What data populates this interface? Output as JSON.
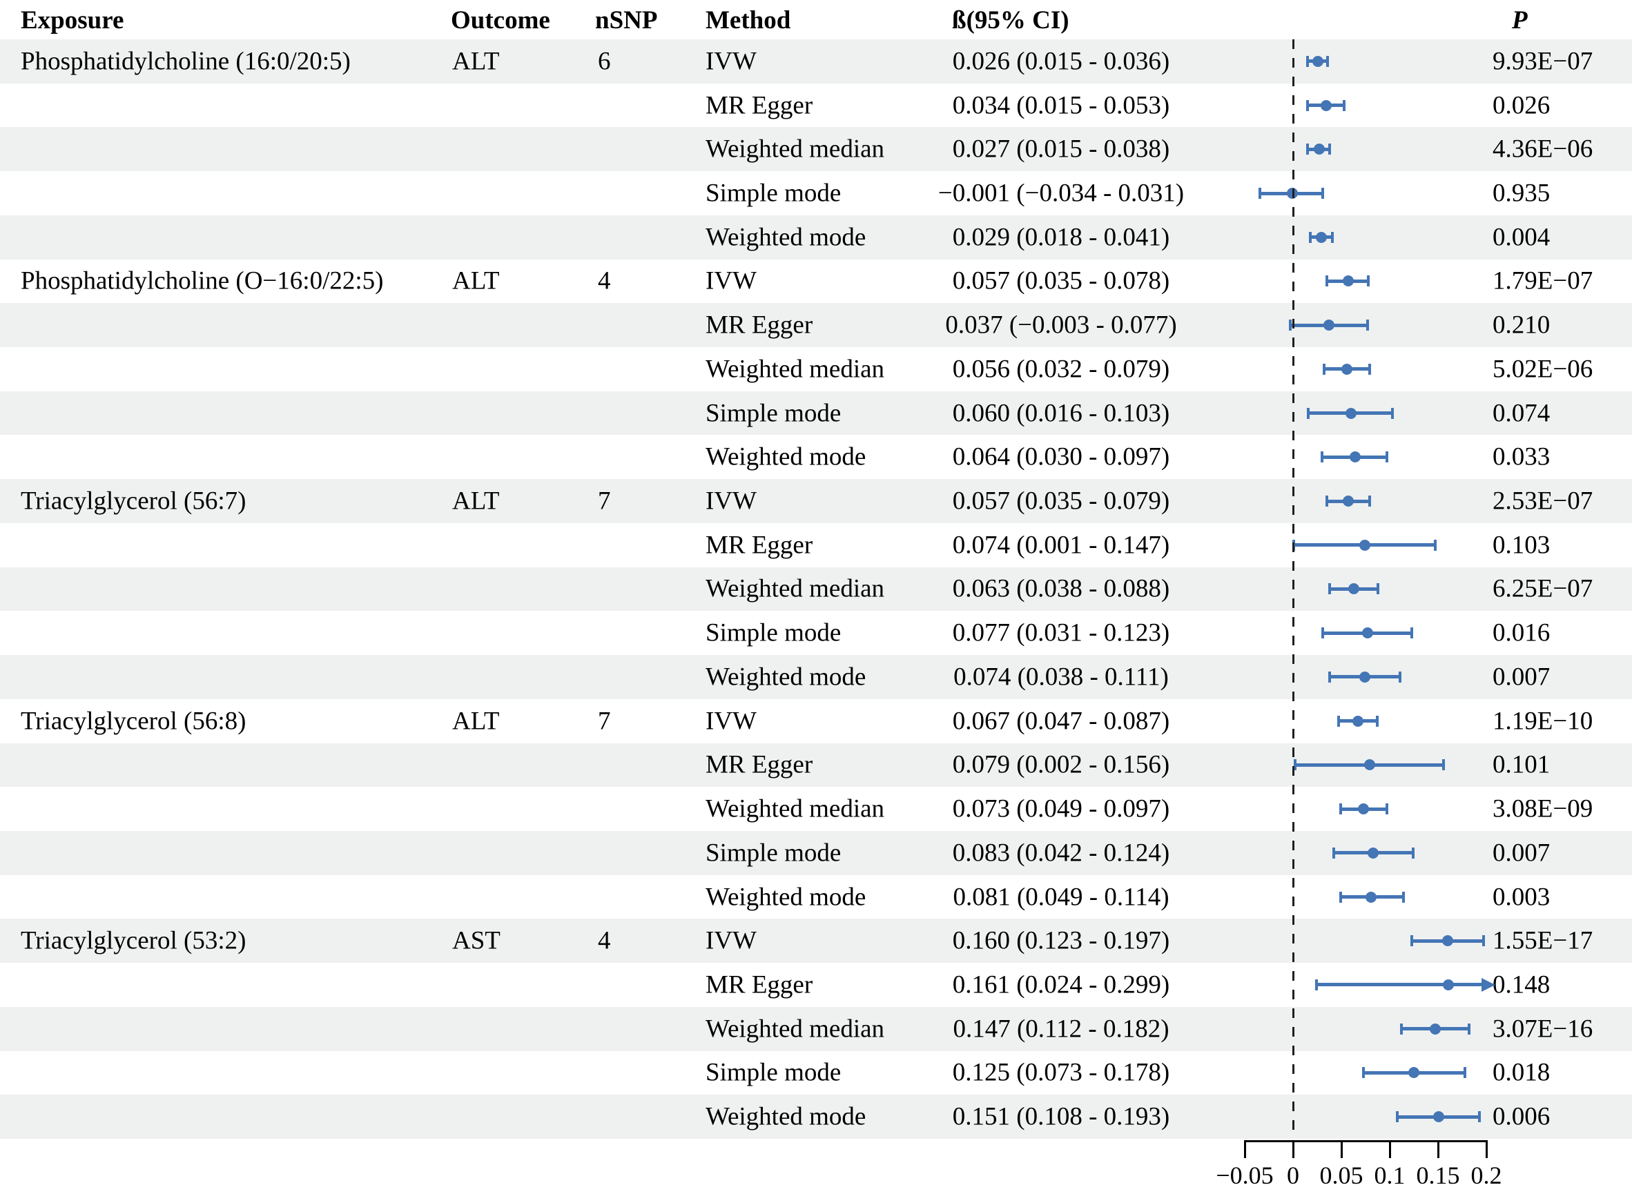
{
  "header": {
    "exposure": "Exposure",
    "outcome": "Outcome",
    "nsnp": "nSNP",
    "method": "Method",
    "ci": "ß(95% CI)",
    "p": "P"
  },
  "chart_data": {
    "type": "forest",
    "colors": {
      "marker": "#4475b5",
      "row_stripe": "#eef1f0",
      "zero_line": "#1f1f1f"
    },
    "axis": {
      "xlim": [
        -0.05,
        0.2
      ],
      "zero_line": 0,
      "ticks": [
        {
          "value": -0.05,
          "label": "−0.05"
        },
        {
          "value": 0,
          "label": "0"
        },
        {
          "value": 0.05,
          "label": "0.05"
        },
        {
          "value": 0.1,
          "label": "0.1"
        },
        {
          "value": 0.15,
          "label": "0.15"
        },
        {
          "value": 0.2,
          "label": "0.2"
        }
      ]
    },
    "groups": [
      {
        "exposure": "Phosphatidylcholine (16:0/20:5)",
        "outcome": "ALT",
        "nsnp": "6",
        "rows": [
          {
            "method": "IVW",
            "ci_text": "0.026 (0.015 - 0.036)",
            "beta": 0.026,
            "lo": 0.015,
            "hi": 0.036,
            "p": "9.93E−07"
          },
          {
            "method": "MR Egger",
            "ci_text": "0.034 (0.015 - 0.053)",
            "beta": 0.034,
            "lo": 0.015,
            "hi": 0.053,
            "p": "0.026"
          },
          {
            "method": "Weighted median",
            "ci_text": "0.027 (0.015 - 0.038)",
            "beta": 0.027,
            "lo": 0.015,
            "hi": 0.038,
            "p": "4.36E−06"
          },
          {
            "method": "Simple mode",
            "ci_text": "−0.001 (−0.034 - 0.031)",
            "beta": -0.001,
            "lo": -0.034,
            "hi": 0.031,
            "p": "0.935"
          },
          {
            "method": "Weighted mode",
            "ci_text": "0.029 (0.018 - 0.041)",
            "beta": 0.029,
            "lo": 0.018,
            "hi": 0.041,
            "p": "0.004"
          }
        ]
      },
      {
        "exposure": "Phosphatidylcholine (O−16:0/22:5)",
        "outcome": "ALT",
        "nsnp": "4",
        "rows": [
          {
            "method": "IVW",
            "ci_text": "0.057 (0.035 - 0.078)",
            "beta": 0.057,
            "lo": 0.035,
            "hi": 0.078,
            "p": "1.79E−07"
          },
          {
            "method": "MR Egger",
            "ci_text": "0.037 (−0.003 - 0.077)",
            "beta": 0.037,
            "lo": -0.003,
            "hi": 0.077,
            "p": "0.210"
          },
          {
            "method": "Weighted median",
            "ci_text": "0.056 (0.032 - 0.079)",
            "beta": 0.056,
            "lo": 0.032,
            "hi": 0.079,
            "p": "5.02E−06"
          },
          {
            "method": "Simple mode",
            "ci_text": "0.060 (0.016 - 0.103)",
            "beta": 0.06,
            "lo": 0.016,
            "hi": 0.103,
            "p": "0.074"
          },
          {
            "method": "Weighted mode",
            "ci_text": "0.064 (0.030 - 0.097)",
            "beta": 0.064,
            "lo": 0.03,
            "hi": 0.097,
            "p": "0.033"
          }
        ]
      },
      {
        "exposure": "Triacylglycerol (56:7)",
        "outcome": "ALT",
        "nsnp": "7",
        "rows": [
          {
            "method": "IVW",
            "ci_text": "0.057 (0.035 - 0.079)",
            "beta": 0.057,
            "lo": 0.035,
            "hi": 0.079,
            "p": "2.53E−07"
          },
          {
            "method": "MR Egger",
            "ci_text": "0.074 (0.001 - 0.147)",
            "beta": 0.074,
            "lo": 0.001,
            "hi": 0.147,
            "p": "0.103"
          },
          {
            "method": "Weighted median",
            "ci_text": "0.063 (0.038 - 0.088)",
            "beta": 0.063,
            "lo": 0.038,
            "hi": 0.088,
            "p": "6.25E−07"
          },
          {
            "method": "Simple mode",
            "ci_text": "0.077 (0.031 - 0.123)",
            "beta": 0.077,
            "lo": 0.031,
            "hi": 0.123,
            "p": "0.016"
          },
          {
            "method": "Weighted mode",
            "ci_text": "0.074 (0.038 - 0.111)",
            "beta": 0.074,
            "lo": 0.038,
            "hi": 0.111,
            "p": "0.007"
          }
        ]
      },
      {
        "exposure": "Triacylglycerol (56:8)",
        "outcome": "ALT",
        "nsnp": "7",
        "rows": [
          {
            "method": "IVW",
            "ci_text": "0.067 (0.047 - 0.087)",
            "beta": 0.067,
            "lo": 0.047,
            "hi": 0.087,
            "p": "1.19E−10"
          },
          {
            "method": "MR Egger",
            "ci_text": "0.079 (0.002 - 0.156)",
            "beta": 0.079,
            "lo": 0.002,
            "hi": 0.156,
            "p": "0.101"
          },
          {
            "method": "Weighted median",
            "ci_text": "0.073 (0.049 - 0.097)",
            "beta": 0.073,
            "lo": 0.049,
            "hi": 0.097,
            "p": "3.08E−09"
          },
          {
            "method": "Simple mode",
            "ci_text": "0.083 (0.042 - 0.124)",
            "beta": 0.083,
            "lo": 0.042,
            "hi": 0.124,
            "p": "0.007"
          },
          {
            "method": "Weighted mode",
            "ci_text": "0.081 (0.049 - 0.114)",
            "beta": 0.081,
            "lo": 0.049,
            "hi": 0.114,
            "p": "0.003"
          }
        ]
      },
      {
        "exposure": "Triacylglycerol (53:2)",
        "outcome": "AST",
        "nsnp": "4",
        "rows": [
          {
            "method": "IVW",
            "ci_text": "0.160 (0.123 - 0.197)",
            "beta": 0.16,
            "lo": 0.123,
            "hi": 0.197,
            "p": "1.55E−17"
          },
          {
            "method": "MR Egger",
            "ci_text": "0.161 (0.024 - 0.299)",
            "beta": 0.161,
            "lo": 0.024,
            "hi": 0.299,
            "p": "0.148"
          },
          {
            "method": "Weighted median",
            "ci_text": "0.147 (0.112 - 0.182)",
            "beta": 0.147,
            "lo": 0.112,
            "hi": 0.182,
            "p": "3.07E−16"
          },
          {
            "method": "Simple mode",
            "ci_text": "0.125 (0.073 - 0.178)",
            "beta": 0.125,
            "lo": 0.073,
            "hi": 0.178,
            "p": "0.018"
          },
          {
            "method": "Weighted mode",
            "ci_text": "0.151 (0.108 - 0.193)",
            "beta": 0.151,
            "lo": 0.108,
            "hi": 0.193,
            "p": "0.006"
          }
        ]
      }
    ]
  }
}
